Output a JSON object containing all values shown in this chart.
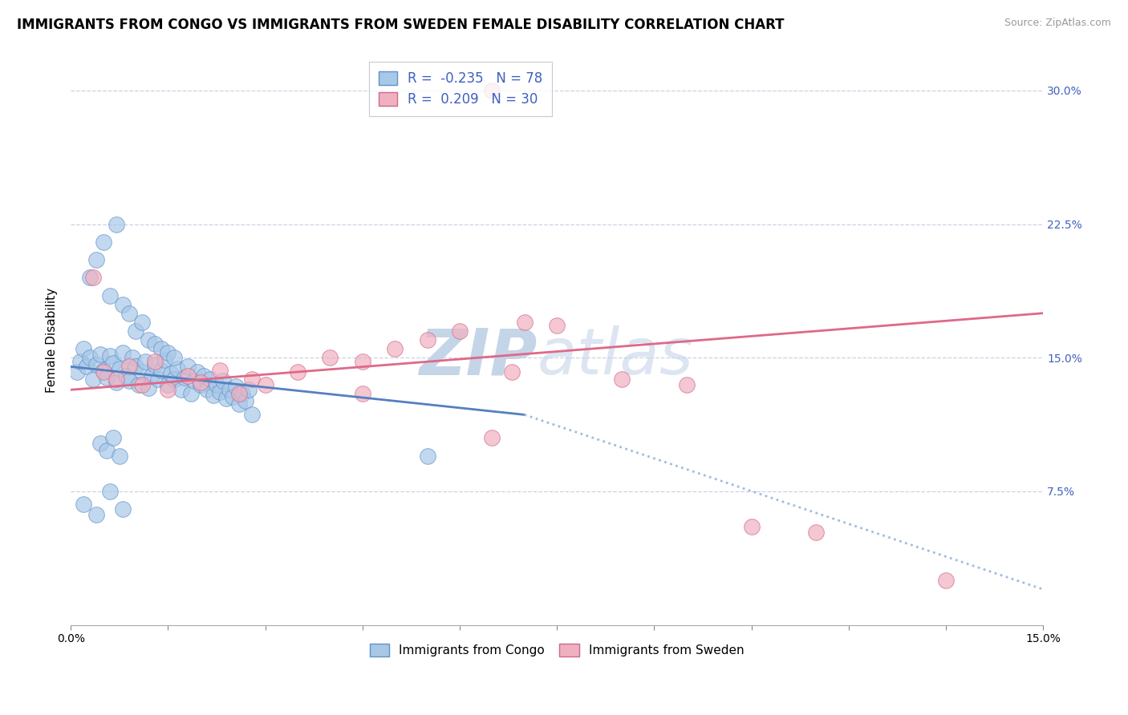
{
  "title": "IMMIGRANTS FROM CONGO VS IMMIGRANTS FROM SWEDEN FEMALE DISABILITY CORRELATION CHART",
  "source": "Source: ZipAtlas.com",
  "xlim": [
    0.0,
    15.0
  ],
  "ylim": [
    0.0,
    32.0
  ],
  "congo_face_color": "#a8c8e8",
  "congo_edge_color": "#6090c8",
  "sweden_face_color": "#f0b0c0",
  "sweden_edge_color": "#d06888",
  "congo_line_color": "#5580c0",
  "congo_dot_color": "#a0bce0",
  "sweden_line_color": "#e06888",
  "grid_color": "#c8d4e4",
  "watermark_zip_color": "#c5d5e8",
  "watermark_atlas_color": "#c5d5e8",
  "r_text_color": "#4060c0",
  "background": "#ffffff",
  "ylabel": "Female Disability",
  "ytick_right_labels": [
    "7.5%",
    "15.0%",
    "22.5%",
    "30.0%"
  ],
  "ytick_values": [
    7.5,
    15.0,
    22.5,
    30.0
  ],
  "xtick_values": [
    0.0,
    1.5,
    3.0,
    4.5,
    6.0,
    7.5,
    9.0,
    10.5,
    12.0,
    13.5,
    15.0
  ],
  "xtick_label_values": [
    0.0,
    15.0
  ],
  "legend_r_congo": "-0.235",
  "legend_n_congo": "78",
  "legend_r_sweden": "0.209",
  "legend_n_sweden": "30",
  "congo_scatter_x": [
    0.1,
    0.15,
    0.2,
    0.25,
    0.3,
    0.35,
    0.4,
    0.45,
    0.5,
    0.55,
    0.6,
    0.65,
    0.7,
    0.75,
    0.8,
    0.85,
    0.9,
    0.95,
    1.0,
    1.05,
    1.1,
    1.15,
    1.2,
    1.25,
    1.3,
    1.35,
    1.4,
    1.45,
    1.5,
    1.55,
    1.6,
    1.65,
    1.7,
    1.75,
    1.8,
    1.85,
    1.9,
    1.95,
    2.0,
    2.05,
    2.1,
    2.15,
    2.2,
    2.25,
    2.3,
    2.35,
    2.4,
    2.45,
    2.5,
    2.55,
    2.6,
    2.65,
    2.7,
    2.75,
    2.8,
    0.3,
    0.4,
    0.5,
    0.6,
    0.7,
    0.8,
    0.9,
    1.0,
    1.1,
    1.2,
    1.3,
    1.4,
    1.5,
    1.6,
    0.2,
    0.4,
    0.6,
    0.8,
    0.45,
    0.55,
    0.65,
    0.75,
    5.5
  ],
  "congo_scatter_y": [
    14.2,
    14.8,
    15.5,
    14.5,
    15.0,
    13.8,
    14.6,
    15.2,
    14.3,
    13.9,
    15.1,
    14.7,
    13.6,
    14.4,
    15.3,
    14.0,
    13.7,
    15.0,
    14.5,
    13.5,
    14.2,
    14.8,
    13.3,
    14.0,
    14.6,
    13.8,
    14.3,
    14.9,
    13.5,
    14.1,
    13.8,
    14.4,
    13.2,
    13.9,
    14.5,
    13.0,
    13.7,
    14.2,
    13.5,
    14.0,
    13.2,
    13.8,
    12.9,
    13.5,
    13.1,
    13.7,
    12.7,
    13.2,
    12.8,
    13.4,
    12.4,
    13.0,
    12.6,
    13.2,
    11.8,
    19.5,
    20.5,
    21.5,
    18.5,
    22.5,
    18.0,
    17.5,
    16.5,
    17.0,
    16.0,
    15.8,
    15.5,
    15.3,
    15.0,
    6.8,
    6.2,
    7.5,
    6.5,
    10.2,
    9.8,
    10.5,
    9.5,
    9.5
  ],
  "sweden_scatter_x": [
    0.35,
    0.5,
    0.7,
    0.9,
    1.1,
    1.3,
    1.5,
    1.8,
    2.0,
    2.3,
    2.6,
    2.8,
    3.0,
    3.5,
    4.0,
    4.5,
    5.0,
    5.5,
    6.0,
    6.5,
    7.0,
    7.5,
    8.5,
    9.5,
    10.5,
    11.5,
    13.5,
    6.5,
    4.5,
    6.8
  ],
  "sweden_scatter_y": [
    19.5,
    14.2,
    13.8,
    14.5,
    13.5,
    14.8,
    13.2,
    14.0,
    13.6,
    14.3,
    13.0,
    13.8,
    13.5,
    14.2,
    15.0,
    14.8,
    15.5,
    16.0,
    16.5,
    10.5,
    17.0,
    16.8,
    13.8,
    13.5,
    5.5,
    5.2,
    2.5,
    30.0,
    13.0,
    14.2
  ],
  "congo_reg_x0": 0.0,
  "congo_reg_y0": 14.5,
  "congo_reg_x1": 7.0,
  "congo_reg_y1": 11.8,
  "congo_dot_x0": 7.0,
  "congo_dot_y0": 11.8,
  "congo_dot_x1": 15.0,
  "congo_dot_y1": 2.0,
  "sweden_reg_x0": 0.0,
  "sweden_reg_y0": 13.2,
  "sweden_reg_x1": 15.0,
  "sweden_reg_y1": 17.5,
  "title_fontsize": 12,
  "source_fontsize": 9,
  "tick_fontsize": 10,
  "legend_fontsize": 12,
  "ylabel_fontsize": 11
}
